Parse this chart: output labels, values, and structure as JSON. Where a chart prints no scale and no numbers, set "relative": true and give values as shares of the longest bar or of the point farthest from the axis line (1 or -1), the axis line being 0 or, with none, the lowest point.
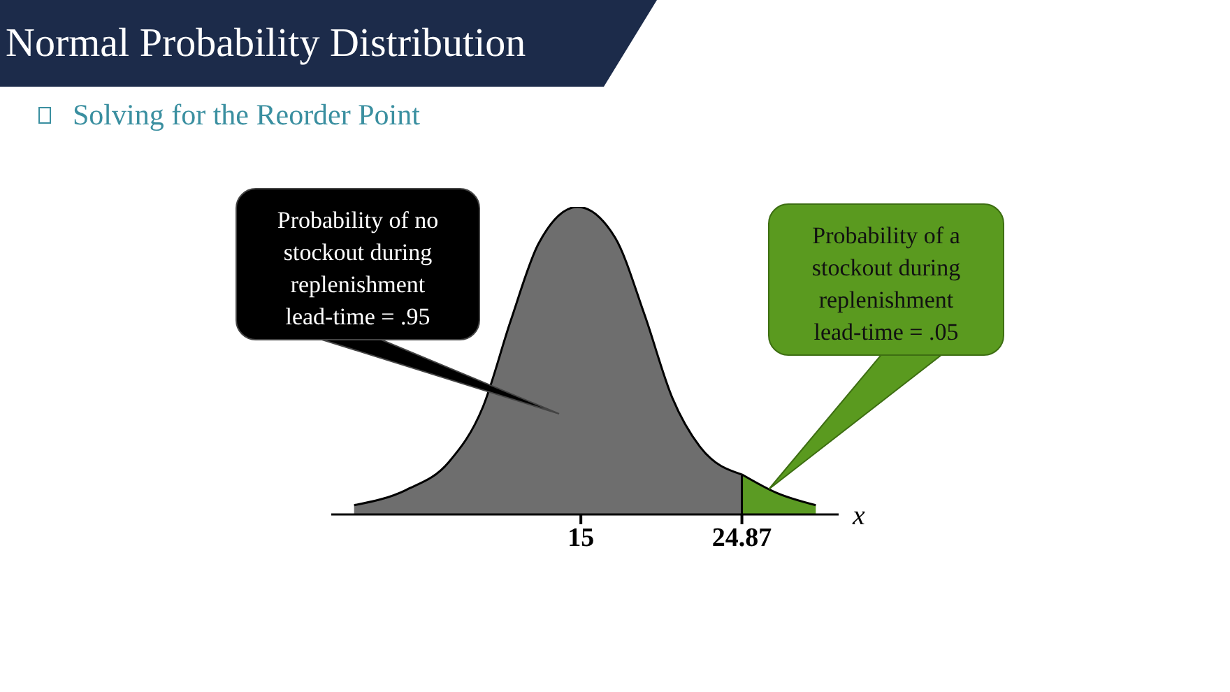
{
  "chart_data": {
    "type": "area",
    "title": "Normal Probability Distribution",
    "subtitle": "Solving for the Reorder Point",
    "xlabel": "x",
    "relative": true,
    "xlim": [
      -0.3,
      30.8
    ],
    "xticks": [
      15,
      24.87
    ],
    "tick_labels": "x",
    "series": [
      {
        "color": "#6e6e6e",
        "x": [
          1.1,
          4.3,
          6.9,
          9.0,
          10.7,
          12.4,
          14.8,
          17.1,
          18.9,
          20.6,
          22.3,
          24.87
        ],
        "values": [
          0.03,
          0.08,
          0.17,
          0.35,
          0.63,
          0.88,
          1.0,
          0.9,
          0.65,
          0.38,
          0.22,
          0.13
        ]
      },
      {
        "color": "#5b9b23",
        "x": [
          24.87,
          27.0,
          29.4
        ],
        "values": [
          0.13,
          0.07,
          0.03
        ]
      }
    ],
    "ref_lines": [
      {
        "axis": "x",
        "value": 24.87,
        "label": null,
        "color": "#000000"
      }
    ],
    "annotations": [
      "Probability of no\nstockout during\nreplenishment\nlead-time = .95",
      "Probability of a\nstockout during\nreplenishment\nlead-time = .05"
    ]
  }
}
